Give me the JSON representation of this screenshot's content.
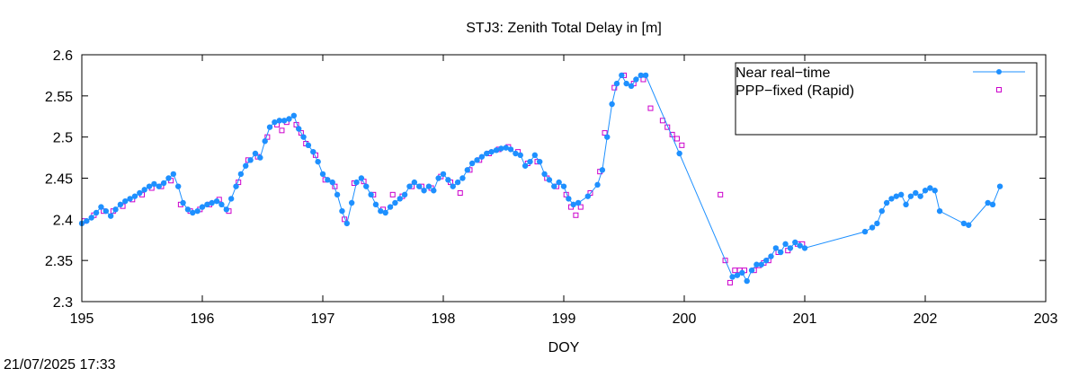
{
  "timestamp": "21/07/2025 17:33",
  "chart_data": {
    "type": "scatter",
    "title": "STJ3: Zenith Total Delay in [m]",
    "xlabel": "DOY",
    "ylabel": "",
    "xlim": [
      195,
      203
    ],
    "ylim": [
      2.3,
      2.6
    ],
    "x_ticks": [
      "195",
      "196",
      "197",
      "198",
      "199",
      "200",
      "201",
      "202",
      "203"
    ],
    "y_ticks": [
      "2.3",
      "2.35",
      "2.4",
      "2.45",
      "2.5",
      "2.55",
      "2.6"
    ],
    "grid": false,
    "legend_position": "top-right",
    "series": [
      {
        "name": "Near real−time",
        "style": "linespoints",
        "color": "#1e90ff",
        "points": [
          [
            195.0,
            2.395
          ],
          [
            195.04,
            2.398
          ],
          [
            195.08,
            2.402
          ],
          [
            195.12,
            2.408
          ],
          [
            195.16,
            2.415
          ],
          [
            195.2,
            2.41
          ],
          [
            195.24,
            2.404
          ],
          [
            195.28,
            2.412
          ],
          [
            195.32,
            2.418
          ],
          [
            195.36,
            2.422
          ],
          [
            195.4,
            2.425
          ],
          [
            195.44,
            2.428
          ],
          [
            195.48,
            2.432
          ],
          [
            195.52,
            2.436
          ],
          [
            195.56,
            2.44
          ],
          [
            195.6,
            2.443
          ],
          [
            195.64,
            2.44
          ],
          [
            195.68,
            2.444
          ],
          [
            195.72,
            2.45
          ],
          [
            195.76,
            2.455
          ],
          [
            195.8,
            2.44
          ],
          [
            195.84,
            2.42
          ],
          [
            195.88,
            2.412
          ],
          [
            195.92,
            2.408
          ],
          [
            195.96,
            2.41
          ],
          [
            196.0,
            2.415
          ],
          [
            196.04,
            2.418
          ],
          [
            196.08,
            2.42
          ],
          [
            196.12,
            2.422
          ],
          [
            196.16,
            2.418
          ],
          [
            196.2,
            2.412
          ],
          [
            196.24,
            2.425
          ],
          [
            196.28,
            2.44
          ],
          [
            196.32,
            2.455
          ],
          [
            196.36,
            2.465
          ],
          [
            196.4,
            2.472
          ],
          [
            196.44,
            2.48
          ],
          [
            196.48,
            2.475
          ],
          [
            196.52,
            2.495
          ],
          [
            196.56,
            2.512
          ],
          [
            196.6,
            2.518
          ],
          [
            196.64,
            2.52
          ],
          [
            196.68,
            2.52
          ],
          [
            196.72,
            2.522
          ],
          [
            196.76,
            2.526
          ],
          [
            196.8,
            2.51
          ],
          [
            196.84,
            2.5
          ],
          [
            196.88,
            2.49
          ],
          [
            196.92,
            2.482
          ],
          [
            196.96,
            2.47
          ],
          [
            197.0,
            2.455
          ],
          [
            197.04,
            2.448
          ],
          [
            197.08,
            2.445
          ],
          [
            197.12,
            2.43
          ],
          [
            197.16,
            2.41
          ],
          [
            197.2,
            2.395
          ],
          [
            197.24,
            2.42
          ],
          [
            197.28,
            2.445
          ],
          [
            197.32,
            2.45
          ],
          [
            197.36,
            2.44
          ],
          [
            197.4,
            2.43
          ],
          [
            197.44,
            2.418
          ],
          [
            197.48,
            2.41
          ],
          [
            197.52,
            2.408
          ],
          [
            197.56,
            2.415
          ],
          [
            197.6,
            2.42
          ],
          [
            197.64,
            2.425
          ],
          [
            197.68,
            2.43
          ],
          [
            197.72,
            2.44
          ],
          [
            197.76,
            2.445
          ],
          [
            197.8,
            2.44
          ],
          [
            197.84,
            2.435
          ],
          [
            197.88,
            2.44
          ],
          [
            197.92,
            2.435
          ],
          [
            197.96,
            2.45
          ],
          [
            198.0,
            2.455
          ],
          [
            198.04,
            2.448
          ],
          [
            198.08,
            2.44
          ],
          [
            198.12,
            2.445
          ],
          [
            198.16,
            2.45
          ],
          [
            198.2,
            2.46
          ],
          [
            198.24,
            2.468
          ],
          [
            198.28,
            2.472
          ],
          [
            198.32,
            2.476
          ],
          [
            198.36,
            2.48
          ],
          [
            198.4,
            2.482
          ],
          [
            198.44,
            2.484
          ],
          [
            198.48,
            2.486
          ],
          [
            198.52,
            2.487
          ],
          [
            198.56,
            2.485
          ],
          [
            198.6,
            2.48
          ],
          [
            198.64,
            2.478
          ],
          [
            198.68,
            2.465
          ],
          [
            198.72,
            2.47
          ],
          [
            198.76,
            2.478
          ],
          [
            198.8,
            2.47
          ],
          [
            198.84,
            2.455
          ],
          [
            198.88,
            2.448
          ],
          [
            198.92,
            2.44
          ],
          [
            198.96,
            2.445
          ],
          [
            199.0,
            2.44
          ],
          [
            199.04,
            2.425
          ],
          [
            199.08,
            2.418
          ],
          [
            199.12,
            2.42
          ],
          [
            199.2,
            2.428
          ],
          [
            199.28,
            2.442
          ],
          [
            199.32,
            2.46
          ],
          [
            199.36,
            2.5
          ],
          [
            199.4,
            2.54
          ],
          [
            199.44,
            2.565
          ],
          [
            199.48,
            2.575
          ],
          [
            199.52,
            2.565
          ],
          [
            199.56,
            2.562
          ],
          [
            199.6,
            2.57
          ],
          [
            199.64,
            2.575
          ],
          [
            199.68,
            2.575
          ],
          [
            199.96,
            2.48
          ],
          [
            200.4,
            2.33
          ],
          [
            200.44,
            2.332
          ],
          [
            200.48,
            2.335
          ],
          [
            200.52,
            2.325
          ],
          [
            200.56,
            2.338
          ],
          [
            200.6,
            2.345
          ],
          [
            200.64,
            2.345
          ],
          [
            200.68,
            2.35
          ],
          [
            200.72,
            2.355
          ],
          [
            200.76,
            2.365
          ],
          [
            200.8,
            2.36
          ],
          [
            200.84,
            2.37
          ],
          [
            200.88,
            2.365
          ],
          [
            200.92,
            2.372
          ],
          [
            200.96,
            2.368
          ],
          [
            201.0,
            2.365
          ],
          [
            201.5,
            2.385
          ],
          [
            201.56,
            2.39
          ],
          [
            201.6,
            2.395
          ],
          [
            201.64,
            2.41
          ],
          [
            201.68,
            2.42
          ],
          [
            201.72,
            2.425
          ],
          [
            201.76,
            2.428
          ],
          [
            201.8,
            2.43
          ],
          [
            201.84,
            2.418
          ],
          [
            201.88,
            2.428
          ],
          [
            201.92,
            2.432
          ],
          [
            201.96,
            2.428
          ],
          [
            202.0,
            2.435
          ],
          [
            202.04,
            2.438
          ],
          [
            202.08,
            2.435
          ],
          [
            202.12,
            2.41
          ],
          [
            202.32,
            2.395
          ],
          [
            202.36,
            2.393
          ],
          [
            202.52,
            2.42
          ],
          [
            202.56,
            2.418
          ],
          [
            202.62,
            2.44
          ]
        ]
      },
      {
        "name": "PPP−fixed (Rapid)",
        "style": "points",
        "color": "#cc00cc",
        "points": [
          [
            195.02,
            2.398
          ],
          [
            195.1,
            2.405
          ],
          [
            195.18,
            2.41
          ],
          [
            195.26,
            2.41
          ],
          [
            195.34,
            2.416
          ],
          [
            195.42,
            2.424
          ],
          [
            195.5,
            2.43
          ],
          [
            195.58,
            2.438
          ],
          [
            195.66,
            2.44
          ],
          [
            195.74,
            2.447
          ],
          [
            195.82,
            2.418
          ],
          [
            195.9,
            2.41
          ],
          [
            195.98,
            2.412
          ],
          [
            196.06,
            2.418
          ],
          [
            196.14,
            2.424
          ],
          [
            196.22,
            2.41
          ],
          [
            196.3,
            2.445
          ],
          [
            196.38,
            2.472
          ],
          [
            196.46,
            2.476
          ],
          [
            196.54,
            2.5
          ],
          [
            196.62,
            2.515
          ],
          [
            196.66,
            2.508
          ],
          [
            196.7,
            2.518
          ],
          [
            196.78,
            2.515
          ],
          [
            196.82,
            2.505
          ],
          [
            196.86,
            2.492
          ],
          [
            196.94,
            2.478
          ],
          [
            197.02,
            2.448
          ],
          [
            197.1,
            2.44
          ],
          [
            197.18,
            2.4
          ],
          [
            197.26,
            2.444
          ],
          [
            197.34,
            2.446
          ],
          [
            197.42,
            2.43
          ],
          [
            197.5,
            2.412
          ],
          [
            197.58,
            2.43
          ],
          [
            197.66,
            2.428
          ],
          [
            197.74,
            2.44
          ],
          [
            197.82,
            2.44
          ],
          [
            197.9,
            2.438
          ],
          [
            197.98,
            2.452
          ],
          [
            198.06,
            2.445
          ],
          [
            198.14,
            2.432
          ],
          [
            198.22,
            2.46
          ],
          [
            198.3,
            2.472
          ],
          [
            198.38,
            2.48
          ],
          [
            198.46,
            2.485
          ],
          [
            198.54,
            2.488
          ],
          [
            198.62,
            2.482
          ],
          [
            198.7,
            2.468
          ],
          [
            198.78,
            2.47
          ],
          [
            198.86,
            2.45
          ],
          [
            198.94,
            2.44
          ],
          [
            199.02,
            2.43
          ],
          [
            199.06,
            2.415
          ],
          [
            199.1,
            2.405
          ],
          [
            199.14,
            2.415
          ],
          [
            199.22,
            2.432
          ],
          [
            199.3,
            2.458
          ],
          [
            199.34,
            2.505
          ],
          [
            199.42,
            2.56
          ],
          [
            199.5,
            2.575
          ],
          [
            199.58,
            2.565
          ],
          [
            199.66,
            2.57
          ],
          [
            199.72,
            2.535
          ],
          [
            199.82,
            2.52
          ],
          [
            199.86,
            2.512
          ],
          [
            199.9,
            2.503
          ],
          [
            199.94,
            2.498
          ],
          [
            199.98,
            2.49
          ],
          [
            200.3,
            2.43
          ],
          [
            200.34,
            2.35
          ],
          [
            200.38,
            2.323
          ],
          [
            200.42,
            2.338
          ],
          [
            200.46,
            2.338
          ],
          [
            200.5,
            2.338
          ],
          [
            200.58,
            2.338
          ],
          [
            200.62,
            2.344
          ],
          [
            200.66,
            2.347
          ],
          [
            200.7,
            2.35
          ],
          [
            200.78,
            2.36
          ],
          [
            200.86,
            2.362
          ],
          [
            200.94,
            2.37
          ],
          [
            200.98,
            2.37
          ]
        ]
      }
    ]
  }
}
